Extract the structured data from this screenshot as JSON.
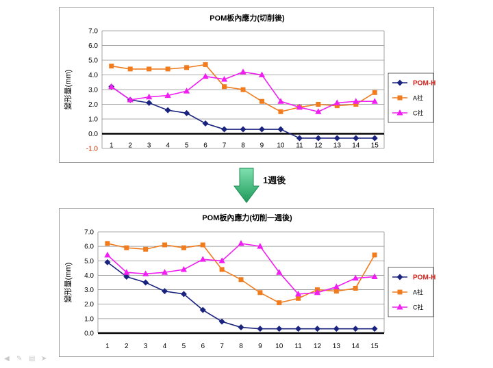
{
  "chart_data": [
    {
      "type": "line",
      "title": "POM板內應力(切削後)",
      "ylabel": "變形量(mm)",
      "xlabel": "",
      "categories": [
        "1",
        "2",
        "3",
        "4",
        "5",
        "6",
        "7",
        "8",
        "9",
        "10",
        "11",
        "12",
        "13",
        "14",
        "15"
      ],
      "ylim": [
        -1.0,
        7.0
      ],
      "yticks": [
        "7.0",
        "6.0",
        "5.0",
        "4.0",
        "3.0",
        "2.0",
        "1.0",
        "0.0",
        "-1.0"
      ],
      "grid": true,
      "legend_position": "right",
      "series": [
        {
          "name": "POM-H",
          "color": "#1a237e",
          "marker": "diamond",
          "values": [
            3.2,
            2.3,
            2.1,
            1.6,
            1.4,
            0.7,
            0.3,
            0.3,
            0.3,
            0.3,
            -0.3,
            -0.3,
            -0.3,
            -0.3,
            -0.3
          ]
        },
        {
          "name": "A社",
          "color": "#f07c1e",
          "marker": "square",
          "values": [
            4.6,
            4.4,
            4.4,
            4.4,
            4.5,
            4.7,
            3.2,
            3.0,
            2.2,
            1.5,
            1.8,
            2.0,
            1.9,
            2.0,
            2.8
          ]
        },
        {
          "name": "C社",
          "color": "#f01ef0",
          "marker": "triangle",
          "values": [
            3.2,
            2.3,
            2.5,
            2.6,
            2.9,
            3.9,
            3.7,
            4.2,
            4.0,
            2.2,
            1.8,
            1.5,
            2.1,
            2.2,
            2.2
          ]
        }
      ]
    },
    {
      "type": "line",
      "title": "POM板內應力(切削一週後)",
      "ylabel": "變形量(mm)",
      "xlabel": "",
      "categories": [
        "1",
        "2",
        "3",
        "4",
        "5",
        "6",
        "7",
        "8",
        "9",
        "10",
        "11",
        "12",
        "13",
        "14",
        "15"
      ],
      "ylim": [
        0.0,
        7.0
      ],
      "yticks": [
        "7.0",
        "6.0",
        "5.0",
        "4.0",
        "3.0",
        "2.0",
        "1.0",
        "0.0"
      ],
      "grid": true,
      "legend_position": "right",
      "series": [
        {
          "name": "POM-H",
          "color": "#1a237e",
          "marker": "diamond",
          "values": [
            4.9,
            3.9,
            3.5,
            2.9,
            2.7,
            1.6,
            0.8,
            0.4,
            0.3,
            0.3,
            0.3,
            0.3,
            0.3,
            0.3,
            0.3
          ]
        },
        {
          "name": "A社",
          "color": "#f07c1e",
          "marker": "square",
          "values": [
            6.2,
            5.9,
            5.8,
            6.1,
            5.9,
            6.1,
            4.4,
            3.7,
            2.8,
            2.1,
            2.4,
            3.0,
            2.9,
            3.1,
            5.4
          ]
        },
        {
          "name": "C社",
          "color": "#f01ef0",
          "marker": "triangle",
          "values": [
            5.4,
            4.2,
            4.1,
            4.2,
            4.4,
            5.1,
            5.0,
            6.2,
            6.0,
            4.2,
            2.7,
            2.8,
            3.2,
            3.8,
            3.9
          ]
        }
      ]
    }
  ],
  "transition": {
    "label": "1週後",
    "arrow_color": "#3cbf84"
  },
  "toolbar": {
    "icons": [
      "back-icon",
      "pen-icon",
      "menu-icon",
      "forward-icon"
    ]
  }
}
